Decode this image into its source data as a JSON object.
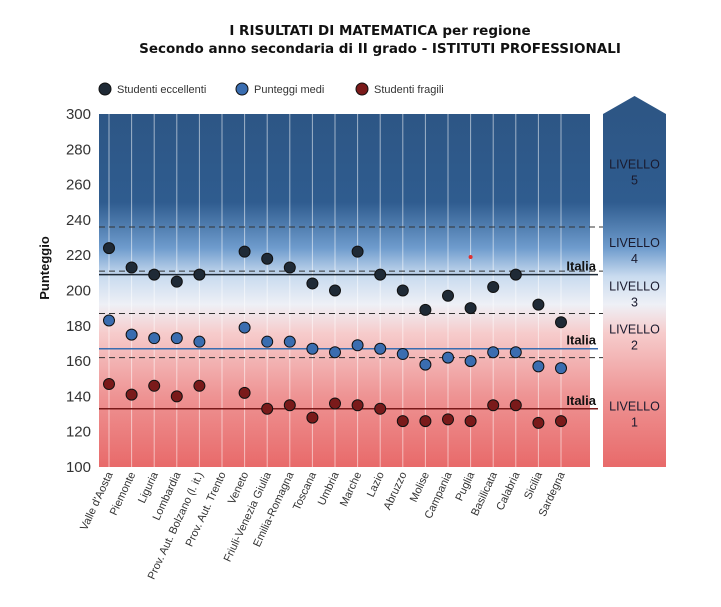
{
  "chart_data": {
    "type": "scatter",
    "title": "I RISULTATI DI MATEMATICA per regione",
    "subtitle": "Secondo anno secondaria di II grado - ISTITUTI PROFESSIONALI",
    "ylabel": "Punteggio",
    "xlabel": "",
    "ylim": [
      100,
      300
    ],
    "yticks": [
      100,
      120,
      140,
      160,
      180,
      200,
      220,
      240,
      260,
      280,
      300
    ],
    "categories": [
      "Valle d'Aosta",
      "Piemonte",
      "Liguria",
      "Lombardia",
      "Prov. Aut. Bolzano (l. it.)",
      "Prov. Aut. Trento",
      "Veneto",
      "Friuli-Venezia Giulia",
      "Emilia-Romagna",
      "Toscana",
      "Umbria",
      "Marche",
      "Lazio",
      "Abruzzo",
      "Molise",
      "Campania",
      "Puglia",
      "Basilicata",
      "Calabria",
      "Sicilia",
      "Sardegna"
    ],
    "series": [
      {
        "name": "Studenti eccellenti",
        "color": "#1f2a36",
        "values": [
          224,
          213,
          209,
          205,
          209,
          null,
          222,
          218,
          213,
          204,
          200,
          222,
          209,
          200,
          189,
          197,
          190,
          202,
          209,
          192,
          182
        ]
      },
      {
        "name": "Punteggi medi",
        "color": "#3a6db0",
        "values": [
          183,
          175,
          173,
          173,
          171,
          null,
          179,
          171,
          171,
          167,
          165,
          169,
          167,
          164,
          158,
          162,
          160,
          165,
          165,
          157,
          156
        ]
      },
      {
        "name": "Studenti fragili",
        "color": "#7a1a1a",
        "values": [
          147,
          141,
          146,
          140,
          146,
          null,
          142,
          133,
          135,
          128,
          136,
          135,
          133,
          126,
          126,
          127,
          126,
          135,
          135,
          125,
          126
        ]
      }
    ],
    "reference_lines": [
      {
        "label": "Italia",
        "value": 209,
        "color": "#1f2a36"
      },
      {
        "label": "Italia",
        "value": 167,
        "color": "#3a6db0"
      },
      {
        "label": "Italia",
        "value": 133,
        "color": "#7a1a1a"
      }
    ],
    "level_thresholds": [
      236,
      211,
      187,
      162
    ],
    "levels": [
      {
        "line1": "LIVELLO",
        "line2": "5",
        "from": 236,
        "to": 300
      },
      {
        "line1": "LIVELLO",
        "line2": "4",
        "from": 211,
        "to": 236
      },
      {
        "line1": "LIVELLO",
        "line2": "3",
        "from": 187,
        "to": 211
      },
      {
        "line1": "LIVELLO",
        "line2": "2",
        "from": 162,
        "to": 187
      },
      {
        "line1": "LIVELLO",
        "line2": "1",
        "from": 100,
        "to": 162
      }
    ],
    "annotations": [
      {
        "category": "Puglia",
        "value": 219,
        "color": "#e03030"
      }
    ],
    "legend_position": "top-left",
    "grid": false
  }
}
